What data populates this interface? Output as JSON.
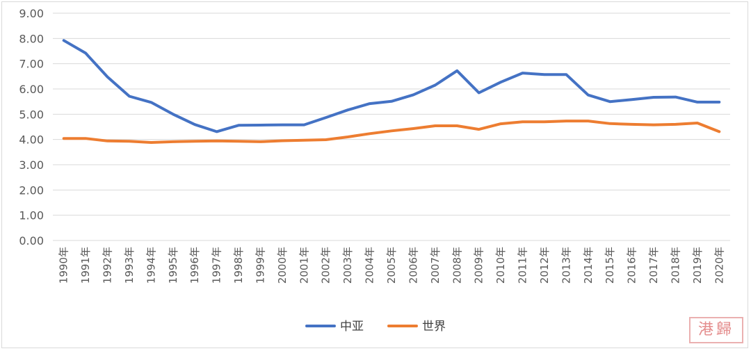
{
  "chart_data": {
    "type": "line",
    "categories": [
      "1990年",
      "1991年",
      "1992年",
      "1993年",
      "1994年",
      "1995年",
      "1996年",
      "1997年",
      "1998年",
      "1999年",
      "2000年",
      "2001年",
      "2002年",
      "2003年",
      "2004年",
      "2005年",
      "2006年",
      "2007年",
      "2008年",
      "2009年",
      "2010年",
      "2011年",
      "2012年",
      "2013年",
      "2014年",
      "2015年",
      "2016年",
      "2017年",
      "2018年",
      "2019年",
      "2020年"
    ],
    "series": [
      {
        "name": "中亚",
        "color": "#4472c4",
        "values": [
          7.92,
          7.42,
          6.48,
          5.71,
          5.47,
          5.0,
          4.59,
          4.31,
          4.56,
          4.57,
          4.58,
          4.58,
          4.87,
          5.17,
          5.42,
          5.51,
          5.77,
          6.15,
          6.72,
          5.85,
          6.27,
          6.63,
          6.57,
          6.57,
          5.76,
          5.5,
          5.58,
          5.67,
          5.68,
          5.48,
          5.48
        ]
      },
      {
        "name": "世界",
        "color": "#ed7d31",
        "values": [
          4.04,
          4.04,
          3.94,
          3.93,
          3.88,
          3.91,
          3.93,
          3.94,
          3.93,
          3.91,
          3.95,
          3.97,
          3.99,
          4.1,
          4.23,
          4.34,
          4.43,
          4.54,
          4.54,
          4.4,
          4.62,
          4.7,
          4.7,
          4.73,
          4.73,
          4.63,
          4.6,
          4.58,
          4.6,
          4.65,
          4.31
        ]
      }
    ],
    "y_ticks": [
      "0.00",
      "1.00",
      "2.00",
      "3.00",
      "4.00",
      "5.00",
      "6.00",
      "7.00",
      "8.00",
      "9.00"
    ],
    "ylim": [
      0,
      9
    ],
    "grid": true,
    "legend": "bottom-center"
  },
  "watermark_text": "港歸"
}
